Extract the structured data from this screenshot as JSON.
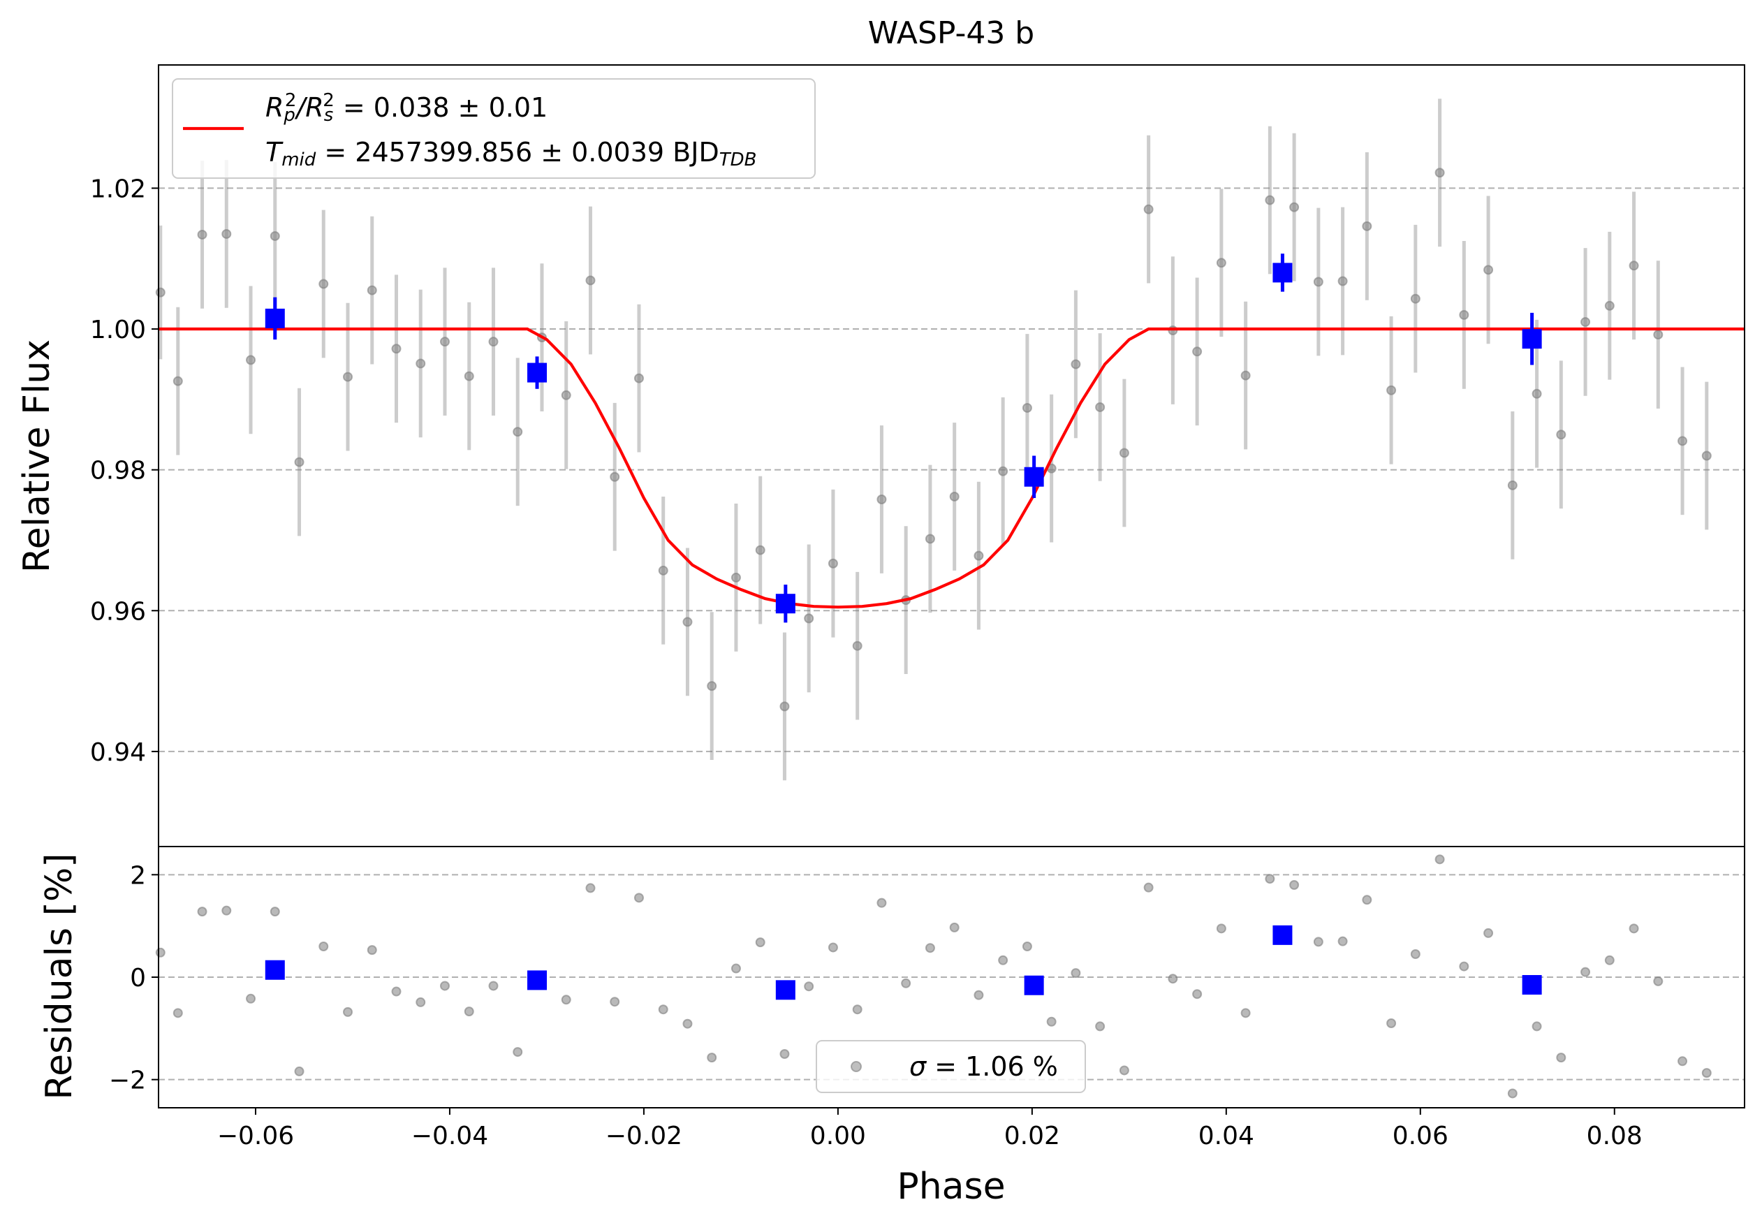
{
  "chart_data": [
    {
      "type": "scatter",
      "title": "WASP-43 b",
      "xlabel": "",
      "ylabel": "Relative Flux",
      "xlim": [
        -0.07,
        0.0934
      ],
      "ylim": [
        0.9265,
        1.0375
      ],
      "grid": "horizontal-dashed",
      "legend_position": "top-left",
      "y_ticks": [
        0.94,
        0.96,
        0.98,
        1.0,
        1.02
      ],
      "y_tick_labels": [
        "0.94",
        "0.96",
        "0.98",
        "1.00",
        "1.02"
      ],
      "legend": {
        "line1": {
          "lhs_main": "R",
          "lhs_sub1": "p",
          "lhs_sup1": "2",
          "lhs_slash": "/",
          "lhs_sub2": "s",
          "lhs_sup2": "2",
          "rhs": " = 0.038 ± 0.01"
        },
        "line2": {
          "lhs_main": "T",
          "lhs_sub": "mid",
          "rhs": " = 2457399.856 ± 0.0039 BJD",
          "unit_sub": "TDB"
        }
      },
      "series": [
        {
          "kind": "raw",
          "color": "#808080",
          "points": [
            [
              -0.0698,
              1.0052,
              0.0095
            ],
            [
              -0.068,
              0.9926,
              0.0105
            ],
            [
              -0.0655,
              1.0134,
              0.0105
            ],
            [
              -0.063,
              1.0135,
              0.0105
            ],
            [
              -0.0605,
              0.9956,
              0.0105
            ],
            [
              -0.058,
              1.0132,
              0.0105
            ],
            [
              -0.0555,
              0.9811,
              0.0105
            ],
            [
              -0.053,
              1.0064,
              0.0105
            ],
            [
              -0.0505,
              0.9932,
              0.0105
            ],
            [
              -0.048,
              1.0055,
              0.0105
            ],
            [
              -0.0455,
              0.9972,
              0.0105
            ],
            [
              -0.043,
              0.9951,
              0.0105
            ],
            [
              -0.0405,
              0.9982,
              0.0105
            ],
            [
              -0.038,
              0.9933,
              0.0105
            ],
            [
              -0.0355,
              0.9982,
              0.0105
            ],
            [
              -0.033,
              0.9854,
              0.0105
            ],
            [
              -0.0305,
              0.9988,
              0.0105
            ],
            [
              -0.028,
              0.9906,
              0.0105
            ],
            [
              -0.0255,
              1.0069,
              0.0105
            ],
            [
              -0.023,
              0.979,
              0.0105
            ],
            [
              -0.0205,
              0.993,
              0.0105
            ],
            [
              -0.018,
              0.9657,
              0.0105
            ],
            [
              -0.0155,
              0.9584,
              0.0105
            ],
            [
              -0.013,
              0.9493,
              0.0105
            ],
            [
              -0.0105,
              0.9647,
              0.0105
            ],
            [
              -0.008,
              0.9686,
              0.0105
            ],
            [
              -0.0055,
              0.9464,
              0.0105
            ],
            [
              -0.003,
              0.9589,
              0.0105
            ],
            [
              -0.0005,
              0.9667,
              0.0105
            ],
            [
              0.002,
              0.955,
              0.0105
            ],
            [
              0.0045,
              0.9758,
              0.0105
            ],
            [
              0.007,
              0.9615,
              0.0105
            ],
            [
              0.0095,
              0.9702,
              0.0105
            ],
            [
              0.012,
              0.9762,
              0.0105
            ],
            [
              0.0145,
              0.9678,
              0.0105
            ],
            [
              0.017,
              0.9798,
              0.0105
            ],
            [
              0.0195,
              0.9888,
              0.0105
            ],
            [
              0.022,
              0.9802,
              0.0105
            ],
            [
              0.0245,
              0.995,
              0.0105
            ],
            [
              0.027,
              0.9889,
              0.0105
            ],
            [
              0.0295,
              0.9824,
              0.0105
            ],
            [
              0.032,
              1.017,
              0.0105
            ],
            [
              0.0345,
              0.9998,
              0.0105
            ],
            [
              0.037,
              0.9968,
              0.0105
            ],
            [
              0.0395,
              1.0094,
              0.0105
            ],
            [
              0.042,
              0.9934,
              0.0105
            ],
            [
              0.0445,
              1.0183,
              0.0105
            ],
            [
              0.047,
              1.0173,
              0.0105
            ],
            [
              0.0495,
              1.0067,
              0.0105
            ],
            [
              0.052,
              1.0068,
              0.0105
            ],
            [
              0.0545,
              1.0146,
              0.0105
            ],
            [
              0.057,
              0.9913,
              0.0105
            ],
            [
              0.0595,
              1.0043,
              0.0105
            ],
            [
              0.062,
              1.0222,
              0.0105
            ],
            [
              0.0645,
              1.002,
              0.0105
            ],
            [
              0.067,
              1.0084,
              0.0105
            ],
            [
              0.0695,
              0.9778,
              0.0105
            ],
            [
              0.072,
              0.9908,
              0.0105
            ],
            [
              0.0745,
              0.985,
              0.0105
            ],
            [
              0.077,
              1.001,
              0.0105
            ],
            [
              0.0795,
              1.0033,
              0.0105
            ],
            [
              0.082,
              1.009,
              0.0105
            ],
            [
              0.0845,
              0.9992,
              0.0105
            ],
            [
              0.087,
              0.9841,
              0.0105
            ],
            [
              0.0895,
              0.982,
              0.0105
            ]
          ]
        },
        {
          "kind": "binned",
          "color": "#0000ff",
          "points": [
            [
              -0.058,
              1.0015,
              0.003
            ],
            [
              -0.031,
              0.9938,
              0.0023
            ],
            [
              -0.0054,
              0.961,
              0.0027
            ],
            [
              0.0202,
              0.979,
              0.003
            ],
            [
              0.0458,
              1.008,
              0.0027
            ],
            [
              0.0715,
              0.9986,
              0.0037
            ]
          ]
        },
        {
          "kind": "model",
          "color": "#ff0000",
          "points": [
            [
              -0.07,
              1.0
            ],
            [
              -0.032,
              1.0
            ],
            [
              -0.03,
              0.9985
            ],
            [
              -0.0275,
              0.995
            ],
            [
              -0.025,
              0.9895
            ],
            [
              -0.0225,
              0.983
            ],
            [
              -0.02,
              0.976
            ],
            [
              -0.0175,
              0.97
            ],
            [
              -0.015,
              0.9665
            ],
            [
              -0.0125,
              0.9645
            ],
            [
              -0.01,
              0.963
            ],
            [
              -0.0075,
              0.9617
            ],
            [
              -0.005,
              0.961
            ],
            [
              -0.0025,
              0.9606
            ],
            [
              0.0,
              0.9605
            ],
            [
              0.0025,
              0.9606
            ],
            [
              0.005,
              0.961
            ],
            [
              0.0075,
              0.9617
            ],
            [
              0.01,
              0.963
            ],
            [
              0.0125,
              0.9645
            ],
            [
              0.015,
              0.9665
            ],
            [
              0.0175,
              0.97
            ],
            [
              0.02,
              0.976
            ],
            [
              0.0225,
              0.983
            ],
            [
              0.025,
              0.9895
            ],
            [
              0.0275,
              0.995
            ],
            [
              0.03,
              0.9985
            ],
            [
              0.032,
              1.0
            ],
            [
              0.0934,
              1.0
            ]
          ]
        }
      ]
    },
    {
      "type": "scatter",
      "title": "",
      "xlabel": "Phase",
      "ylabel": "Residuals [%]",
      "xlim": [
        -0.07,
        0.0934
      ],
      "ylim": [
        -2.55,
        2.55
      ],
      "grid": "horizontal-dashed",
      "legend_position": "bottom-center",
      "x_ticks": [
        -0.06,
        -0.04,
        -0.02,
        0.0,
        0.02,
        0.04,
        0.06,
        0.08
      ],
      "x_tick_labels": [
        "−0.06",
        "−0.04",
        "−0.02",
        "0.00",
        "0.02",
        "0.04",
        "0.06",
        "0.08"
      ],
      "y_ticks": [
        -2,
        0,
        2
      ],
      "y_tick_labels": [
        "−2",
        "0",
        "2"
      ],
      "legend": {
        "sigma_symbol": "σ",
        "sigma_text": " = 1.06 %"
      },
      "series": [
        {
          "kind": "raw",
          "color": "#808080",
          "points": [
            [
              -0.0698,
              0.48
            ],
            [
              -0.068,
              -0.7
            ],
            [
              -0.0655,
              1.28
            ],
            [
              -0.063,
              1.3
            ],
            [
              -0.0605,
              -0.42
            ],
            [
              -0.058,
              1.28
            ],
            [
              -0.0555,
              -1.84
            ],
            [
              -0.053,
              0.6
            ],
            [
              -0.0505,
              -0.68
            ],
            [
              -0.048,
              0.53
            ],
            [
              -0.0455,
              -0.28
            ],
            [
              -0.043,
              -0.49
            ],
            [
              -0.0405,
              -0.17
            ],
            [
              -0.038,
              -0.67
            ],
            [
              -0.0355,
              -0.17
            ],
            [
              -0.033,
              -1.46
            ],
            [
              -0.0305,
              -0.12
            ],
            [
              -0.028,
              -0.44
            ],
            [
              -0.0255,
              1.74
            ],
            [
              -0.023,
              -0.48
            ],
            [
              -0.0205,
              1.55
            ],
            [
              -0.018,
              -0.63
            ],
            [
              -0.0155,
              -0.91
            ],
            [
              -0.013,
              -1.57
            ],
            [
              -0.0105,
              0.17
            ],
            [
              -0.008,
              0.68
            ],
            [
              -0.0055,
              -1.5
            ],
            [
              -0.003,
              -0.18
            ],
            [
              -0.0005,
              0.58
            ],
            [
              0.002,
              -0.63
            ],
            [
              0.0045,
              1.45
            ],
            [
              0.007,
              -0.12
            ],
            [
              0.0095,
              0.57
            ],
            [
              0.012,
              0.97
            ],
            [
              0.0145,
              -0.35
            ],
            [
              0.017,
              0.33
            ],
            [
              0.0195,
              0.6
            ],
            [
              0.022,
              -0.87
            ],
            [
              0.0245,
              0.08
            ],
            [
              0.027,
              -0.96
            ],
            [
              0.0295,
              -1.82
            ],
            [
              0.032,
              1.75
            ],
            [
              0.0345,
              -0.03
            ],
            [
              0.037,
              -0.33
            ],
            [
              0.0395,
              0.95
            ],
            [
              0.042,
              -0.7
            ],
            [
              0.0445,
              1.92
            ],
            [
              0.047,
              1.8
            ],
            [
              0.0495,
              0.69
            ],
            [
              0.052,
              0.7
            ],
            [
              0.0545,
              1.51
            ],
            [
              0.057,
              -0.9
            ],
            [
              0.0595,
              0.45
            ],
            [
              0.062,
              2.3
            ],
            [
              0.0645,
              0.21
            ],
            [
              0.067,
              0.86
            ],
            [
              0.0695,
              -2.27
            ],
            [
              0.072,
              -0.96
            ],
            [
              0.0745,
              -1.57
            ],
            [
              0.077,
              0.1
            ],
            [
              0.0795,
              0.33
            ],
            [
              0.082,
              0.95
            ],
            [
              0.0845,
              -0.08
            ],
            [
              0.087,
              -1.64
            ],
            [
              0.0895,
              -1.87
            ]
          ]
        },
        {
          "kind": "binned",
          "color": "#0000ff",
          "points": [
            [
              -0.058,
              0.14
            ],
            [
              -0.031,
              -0.06
            ],
            [
              -0.0054,
              -0.25
            ],
            [
              0.0202,
              -0.16
            ],
            [
              0.0458,
              0.82
            ],
            [
              0.0715,
              -0.15
            ]
          ]
        }
      ]
    }
  ]
}
